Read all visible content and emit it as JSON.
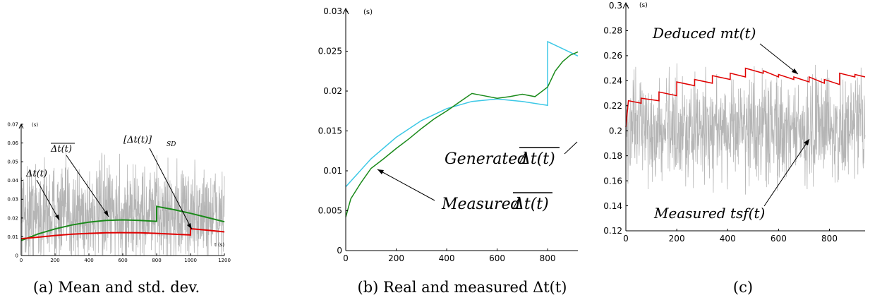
{
  "chart_data": [
    {
      "type": "line",
      "caption": "(a) Mean and std. dev.",
      "yunit": "(s)",
      "xunit": "t (s)",
      "xlim": [
        0,
        1200
      ],
      "ylim": [
        0,
        0.07
      ],
      "xticks": [
        "0",
        "200",
        "400",
        "600",
        "800",
        "1000",
        "1200"
      ],
      "yticks": [
        "0",
        "0.01",
        "0.02",
        "0.03",
        "0.04",
        "0.05",
        "0.06",
        "0.07"
      ],
      "annotations": {
        "delta": "Δt(t)",
        "mean": "Δt(t)",
        "sd": "[Δt(t)]",
        "sd_sub": "SD"
      },
      "series": [
        {
          "name": "Δt(t)",
          "color": "#b5b5b5",
          "kind": "noise",
          "center": 0.022,
          "spread": 0.016,
          "x_max": 1200
        },
        {
          "name": "mean Δt(t)",
          "color": "#1a8a1a",
          "x": [
            0,
            100,
            200,
            300,
            400,
            500,
            600,
            700,
            800,
            800,
            900,
            1000,
            1100,
            1200
          ],
          "y": [
            0.008,
            0.0115,
            0.0142,
            0.0163,
            0.0178,
            0.0187,
            0.019,
            0.0187,
            0.0182,
            0.0262,
            0.0245,
            0.0225,
            0.0203,
            0.018
          ]
        },
        {
          "name": "[Δt(t)]SD",
          "color": "#e00000",
          "x": [
            0,
            100,
            200,
            300,
            400,
            500,
            600,
            700,
            800,
            900,
            1000,
            1000,
            1100,
            1200
          ],
          "y": [
            0.009,
            0.0098,
            0.0107,
            0.0114,
            0.0118,
            0.0121,
            0.0122,
            0.0121,
            0.0118,
            0.0114,
            0.011,
            0.0143,
            0.0135,
            0.0126
          ]
        }
      ]
    },
    {
      "type": "line",
      "caption": "(b) Real and measured Δt(t)",
      "yunit": "(s)",
      "xlim": [
        0,
        920
      ],
      "ylim": [
        0,
        0.03
      ],
      "xticks": [
        "0",
        "200",
        "400",
        "600",
        "800"
      ],
      "yticks": [
        "0",
        "0.005",
        "0.01",
        "0.015",
        "0.02",
        "0.025",
        "0.03"
      ],
      "annotations": {
        "generated": "Generated",
        "measured": "Measured",
        "overbar_text": "Δt(t)"
      },
      "series": [
        {
          "name": "Generated",
          "color": "#3cc8e6",
          "x": [
            0,
            100,
            200,
            300,
            400,
            500,
            600,
            700,
            800,
            800,
            860,
            920
          ],
          "y": [
            0.008,
            0.0115,
            0.0142,
            0.0163,
            0.0178,
            0.0187,
            0.019,
            0.0187,
            0.0182,
            0.0262,
            0.0253,
            0.0244
          ]
        },
        {
          "name": "Measured",
          "color": "#1a8a1a",
          "x": [
            0,
            20,
            60,
            100,
            150,
            200,
            250,
            300,
            350,
            400,
            450,
            500,
            550,
            600,
            650,
            700,
            750,
            800,
            830,
            860,
            890,
            920
          ],
          "y": [
            0.0042,
            0.0065,
            0.0085,
            0.0103,
            0.0115,
            0.0128,
            0.014,
            0.0153,
            0.0165,
            0.0175,
            0.0186,
            0.0197,
            0.0194,
            0.0191,
            0.0193,
            0.0196,
            0.0193,
            0.0205,
            0.0225,
            0.0237,
            0.0245,
            0.0249
          ]
        }
      ]
    },
    {
      "type": "line",
      "caption": "(c)",
      "yunit": "(s)",
      "xlim": [
        0,
        940
      ],
      "ylim": [
        0.12,
        0.3
      ],
      "xticks": [
        "0",
        "200",
        "400",
        "600",
        "800"
      ],
      "yticks": [
        "0.12",
        "0.14",
        "0.16",
        "0.18",
        "0.2",
        "0.22",
        "0.24",
        "0.26",
        "0.28",
        "0.3"
      ],
      "annotations": {
        "deduced": "Deduced mt(t)",
        "measured": "Measured tsf(t)"
      },
      "series": [
        {
          "name": "Measured tsf(t)",
          "color": "#b5b5b5",
          "kind": "noise",
          "center": 0.202,
          "spread": 0.025,
          "x_max": 940
        },
        {
          "name": "Deduced mt(t)",
          "color": "#e00000",
          "x": [
            0,
            10,
            60,
            60,
            130,
            130,
            200,
            200,
            270,
            270,
            340,
            340,
            410,
            410,
            470,
            470,
            540,
            540,
            600,
            600,
            660,
            660,
            720,
            720,
            780,
            780,
            840,
            840,
            900,
            900,
            940
          ],
          "y": [
            0.203,
            0.224,
            0.222,
            0.226,
            0.224,
            0.231,
            0.228,
            0.239,
            0.236,
            0.241,
            0.238,
            0.244,
            0.241,
            0.246,
            0.243,
            0.25,
            0.246,
            0.248,
            0.243,
            0.245,
            0.241,
            0.243,
            0.239,
            0.243,
            0.238,
            0.241,
            0.237,
            0.246,
            0.243,
            0.245,
            0.243
          ]
        }
      ]
    }
  ]
}
